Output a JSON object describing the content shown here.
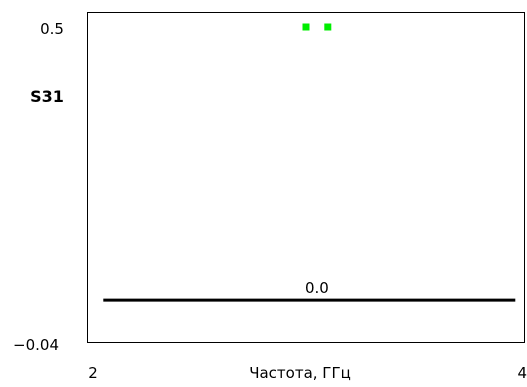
{
  "chart_data": {
    "type": "line",
    "ylabel": "S31",
    "xlabel": "Частота, ГГц",
    "xlim": [
      2,
      4
    ],
    "ylim": [
      -0.04,
      0.5
    ],
    "x_ticks": [
      "2",
      "4"
    ],
    "y_ticks": [
      "0.5",
      "−0.04"
    ],
    "grid": false,
    "series": [
      {
        "x": [
          2.07,
          3.96
        ],
        "values": [
          0.0,
          0.0
        ],
        "color": "#000000"
      }
    ],
    "line_label": {
      "text": "0.0",
      "x": 3.05,
      "y": 0.0
    },
    "markers": {
      "x": [
        3.0,
        3.1
      ],
      "values": [
        0.5,
        0.5
      ],
      "color": "#00ee00",
      "shape": "square"
    }
  }
}
